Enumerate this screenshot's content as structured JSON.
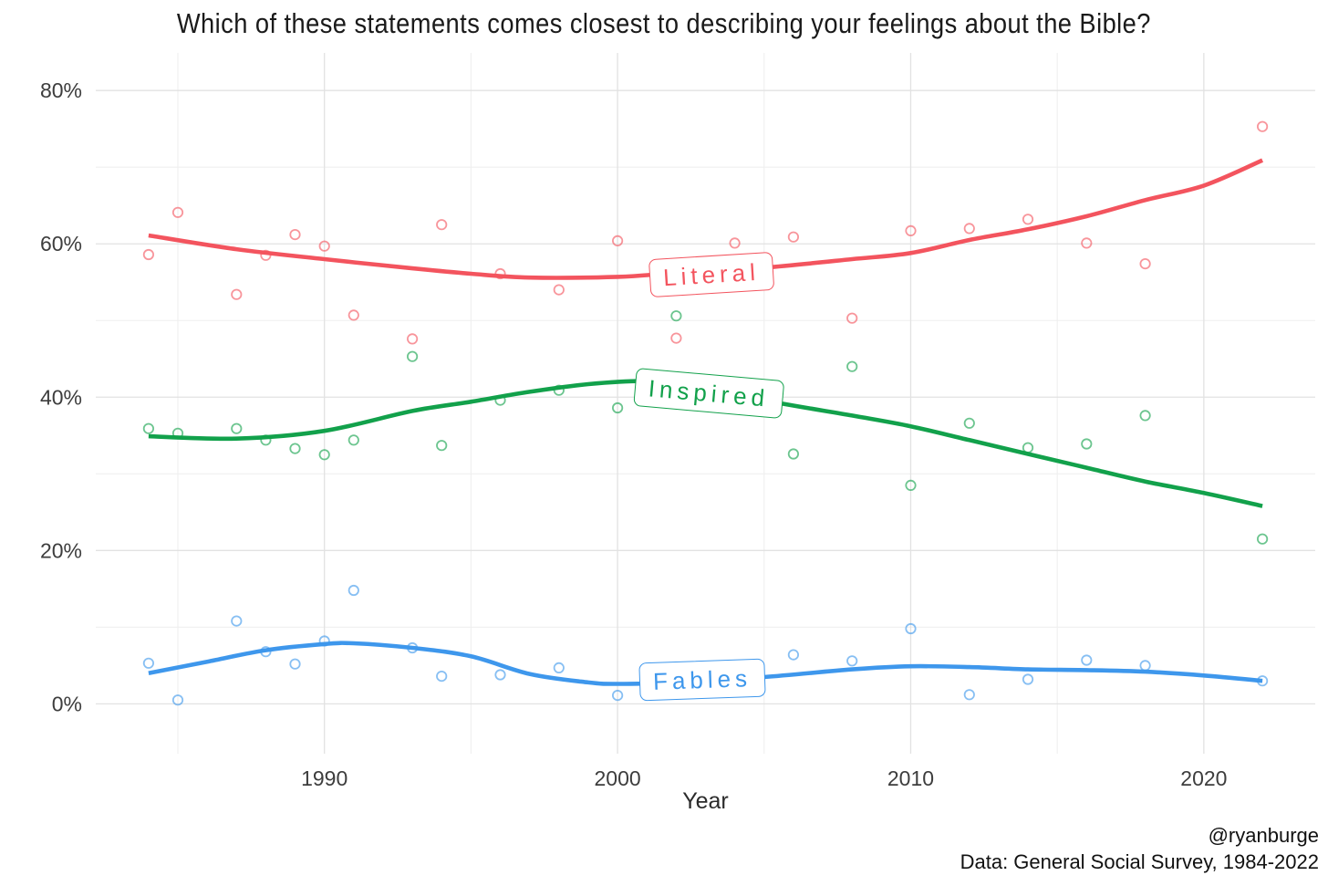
{
  "title": "Which of these statements comes closest to describing your feelings about the Bible?",
  "x_axis": {
    "label": "Year",
    "ticks": [
      1990,
      2000,
      2010,
      2020
    ],
    "minor_ticks": [
      1985,
      1995,
      2005,
      2015
    ],
    "range": [
      1982.2,
      2023.8
    ]
  },
  "y_axis": {
    "ticks": [
      {
        "value": 0,
        "label": "0%"
      },
      {
        "value": 20,
        "label": "20%"
      },
      {
        "value": 40,
        "label": "40%"
      },
      {
        "value": 60,
        "label": "60%"
      },
      {
        "value": 80,
        "label": "80%"
      }
    ],
    "minor": [
      10,
      30,
      50,
      70
    ],
    "range": [
      -6.5,
      84.9
    ]
  },
  "attribution": {
    "line1": "@ryanburge",
    "line2": "Data: General Social Survey, 1984-2022"
  },
  "chart_data": {
    "type": "scatter",
    "title": "Which of these statements comes closest to describing your feelings about the Bible?",
    "xlabel": "Year",
    "ylabel": "",
    "xlim": [
      1982.2,
      2023.8
    ],
    "ylim": [
      -6.5,
      84.9
    ],
    "grid": true,
    "legend_position": "inline-labels",
    "series": [
      {
        "name": "Literal",
        "color": "#f3545e",
        "points": [
          [
            1984,
            58.6
          ],
          [
            1985,
            64.1
          ],
          [
            1987,
            53.4
          ],
          [
            1988,
            58.5
          ],
          [
            1989,
            61.2
          ],
          [
            1990,
            59.7
          ],
          [
            1991,
            50.7
          ],
          [
            1993,
            47.6
          ],
          [
            1994,
            62.5
          ],
          [
            1996,
            56.1
          ],
          [
            1998,
            54.0
          ],
          [
            2000,
            60.4
          ],
          [
            2002,
            47.7
          ],
          [
            2004,
            60.1
          ],
          [
            2006,
            60.9
          ],
          [
            2008,
            50.3
          ],
          [
            2010,
            61.7
          ],
          [
            2012,
            62.0
          ],
          [
            2014,
            63.2
          ],
          [
            2016,
            60.1
          ],
          [
            2018,
            57.4
          ],
          [
            2022,
            75.3
          ]
        ],
        "trend": [
          [
            1984,
            61.1
          ],
          [
            1987,
            59.3
          ],
          [
            1990,
            58.0
          ],
          [
            1993,
            56.8
          ],
          [
            1995,
            56.1
          ],
          [
            1997,
            55.6
          ],
          [
            2000,
            55.7
          ],
          [
            2002,
            56.2
          ],
          [
            2005,
            56.9
          ],
          [
            2008,
            58.0
          ],
          [
            2010,
            58.8
          ],
          [
            2012,
            60.5
          ],
          [
            2014,
            61.9
          ],
          [
            2016,
            63.6
          ],
          [
            2018,
            65.7
          ],
          [
            2020,
            67.6
          ],
          [
            2022,
            70.9
          ]
        ],
        "annotation": {
          "x": 2003.2,
          "y": 56.0,
          "rotation": -3.5
        }
      },
      {
        "name": "Inspired",
        "color": "#12a14b",
        "points": [
          [
            1984,
            35.9
          ],
          [
            1985,
            35.3
          ],
          [
            1987,
            35.9
          ],
          [
            1988,
            34.4
          ],
          [
            1989,
            33.3
          ],
          [
            1990,
            32.5
          ],
          [
            1991,
            34.4
          ],
          [
            1993,
            45.3
          ],
          [
            1994,
            33.7
          ],
          [
            1996,
            39.6
          ],
          [
            1998,
            40.9
          ],
          [
            2000,
            38.6
          ],
          [
            2002,
            50.6
          ],
          [
            2006,
            32.6
          ],
          [
            2008,
            44.0
          ],
          [
            2010,
            28.5
          ],
          [
            2012,
            36.6
          ],
          [
            2014,
            33.4
          ],
          [
            2016,
            33.9
          ],
          [
            2018,
            37.6
          ],
          [
            2022,
            21.5
          ]
        ],
        "trend": [
          [
            1984,
            34.9
          ],
          [
            1987,
            34.6
          ],
          [
            1990,
            35.6
          ],
          [
            1993,
            38.2
          ],
          [
            1995,
            39.4
          ],
          [
            1997,
            40.7
          ],
          [
            1999,
            41.7
          ],
          [
            2001,
            42.1
          ],
          [
            2003,
            41.4
          ],
          [
            2005,
            39.6
          ],
          [
            2008,
            37.6
          ],
          [
            2010,
            36.2
          ],
          [
            2012,
            34.4
          ],
          [
            2014,
            32.6
          ],
          [
            2016,
            30.8
          ],
          [
            2018,
            29.0
          ],
          [
            2020,
            27.5
          ],
          [
            2022,
            25.8
          ]
        ],
        "annotation": {
          "x": 2003.1,
          "y": 40.5,
          "rotation": 5
        }
      },
      {
        "name": "Fables",
        "color": "#3e97ec",
        "points": [
          [
            1984,
            5.3
          ],
          [
            1985,
            0.5
          ],
          [
            1987,
            10.8
          ],
          [
            1988,
            6.8
          ],
          [
            1989,
            5.2
          ],
          [
            1990,
            8.2
          ],
          [
            1991,
            14.8
          ],
          [
            1993,
            7.3
          ],
          [
            1994,
            3.6
          ],
          [
            1996,
            3.8
          ],
          [
            1998,
            4.7
          ],
          [
            2000,
            1.1
          ],
          [
            2006,
            6.4
          ],
          [
            2008,
            5.6
          ],
          [
            2010,
            9.8
          ],
          [
            2012,
            1.2
          ],
          [
            2014,
            3.2
          ],
          [
            2016,
            5.7
          ],
          [
            2018,
            5.0
          ],
          [
            2022,
            3.0
          ]
        ],
        "trend": [
          [
            1984,
            4.0
          ],
          [
            1986,
            5.5
          ],
          [
            1988,
            7.0
          ],
          [
            1990,
            7.8
          ],
          [
            1991,
            7.9
          ],
          [
            1993,
            7.3
          ],
          [
            1995,
            6.2
          ],
          [
            1997,
            3.9
          ],
          [
            1999,
            2.8
          ],
          [
            2000,
            2.6
          ],
          [
            2002,
            2.8
          ],
          [
            2005,
            3.5
          ],
          [
            2008,
            4.5
          ],
          [
            2010,
            4.9
          ],
          [
            2012,
            4.8
          ],
          [
            2014,
            4.5
          ],
          [
            2016,
            4.4
          ],
          [
            2018,
            4.2
          ],
          [
            2020,
            3.7
          ],
          [
            2022,
            3.0
          ]
        ],
        "annotation": {
          "x": 2002.9,
          "y": 3.1,
          "rotation": -2
        }
      }
    ]
  }
}
